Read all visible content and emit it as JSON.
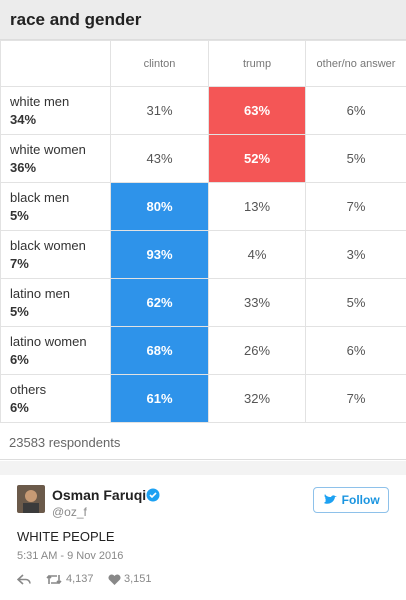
{
  "table": {
    "title": "race and gender",
    "columns": [
      "clinton",
      "trump",
      "other/no answer"
    ],
    "rows": [
      {
        "group": "white men",
        "share": "34%",
        "cells": [
          "31%",
          "63%",
          "6%"
        ],
        "highlight": {
          "column": 1,
          "color": "#f45656"
        }
      },
      {
        "group": "white women",
        "share": "36%",
        "cells": [
          "43%",
          "52%",
          "5%"
        ],
        "highlight": {
          "column": 1,
          "color": "#f45656"
        }
      },
      {
        "group": "black men",
        "share": "5%",
        "cells": [
          "80%",
          "13%",
          "7%"
        ],
        "highlight": {
          "column": 0,
          "color": "#2e93ea"
        }
      },
      {
        "group": "black women",
        "share": "7%",
        "cells": [
          "93%",
          "4%",
          "3%"
        ],
        "highlight": {
          "column": 0,
          "color": "#2e93ea"
        }
      },
      {
        "group": "latino men",
        "share": "5%",
        "cells": [
          "62%",
          "33%",
          "5%"
        ],
        "highlight": {
          "column": 0,
          "color": "#2e93ea"
        }
      },
      {
        "group": "latino women",
        "share": "6%",
        "cells": [
          "68%",
          "26%",
          "6%"
        ],
        "highlight": {
          "column": 0,
          "color": "#2e93ea"
        }
      },
      {
        "group": "others",
        "share": "6%",
        "cells": [
          "61%",
          "32%",
          "7%"
        ],
        "highlight": {
          "column": 0,
          "color": "#2e93ea"
        }
      }
    ],
    "footer": "23583 respondents"
  },
  "tweet": {
    "name": "Osman Faruqi",
    "handle": "@oz_f",
    "follow": "Follow",
    "text": "WHITE PEOPLE",
    "date": "5:31 AM - 9 Nov 2016",
    "retweets": "4,137",
    "likes": "3,151"
  }
}
